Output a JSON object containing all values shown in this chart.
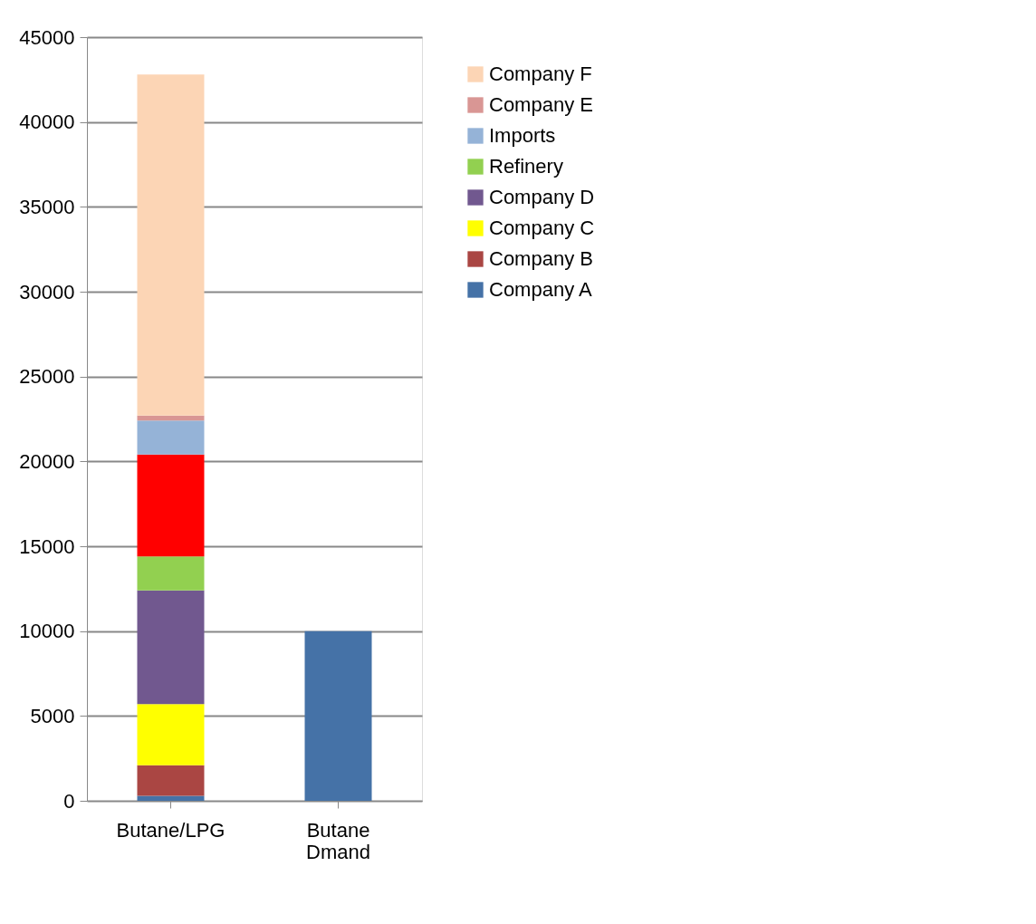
{
  "chart_data": {
    "type": "bar",
    "stacked": true,
    "categories": [
      "Butane/LPG",
      "Butane\nDmand"
    ],
    "series": [
      {
        "name": "Company A",
        "color": "#4572a7",
        "values": [
          300,
          10000
        ]
      },
      {
        "name": "Company B",
        "color": "#aa4643",
        "values": [
          1800,
          null
        ]
      },
      {
        "name": "Company C",
        "color": "#ffff00",
        "values": [
          3600,
          null
        ]
      },
      {
        "name": "Company D",
        "color": "#71588f",
        "values": [
          6700,
          null
        ]
      },
      {
        "name": "Refinery",
        "color": "#92d050",
        "values": [
          2000,
          null
        ]
      },
      {
        "color": "#ff0000",
        "values": [
          6000,
          null
        ]
      },
      {
        "name": "Imports",
        "color": "#95b3d7",
        "values": [
          2000,
          null
        ]
      },
      {
        "name": "Company E",
        "color": "#d99694",
        "values": [
          300,
          null
        ]
      },
      {
        "name": "Company F",
        "color": "#fcd5b5",
        "values": [
          20100,
          null
        ]
      }
    ],
    "ylim": [
      0,
      45000
    ],
    "yticks": [
      0,
      5000,
      10000,
      15000,
      20000,
      25000,
      30000,
      35000,
      40000,
      45000
    ],
    "grid": "y",
    "legend": "right"
  }
}
